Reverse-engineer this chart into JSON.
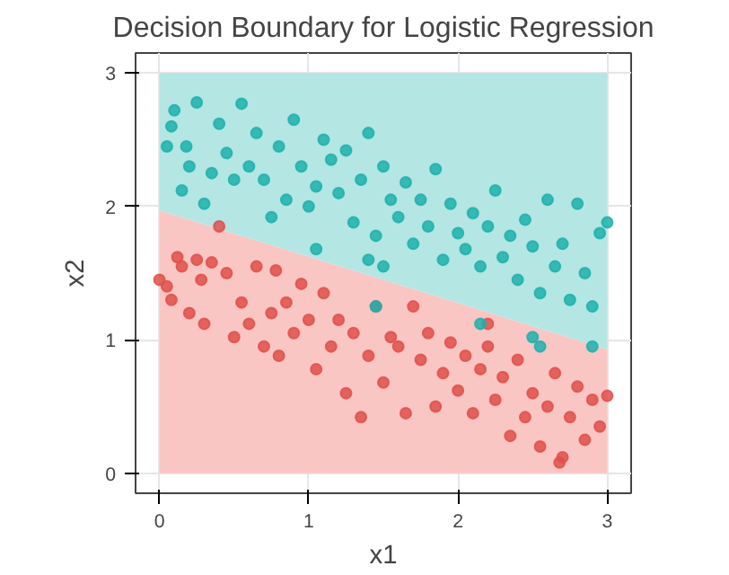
{
  "chart_data": {
    "type": "scatter",
    "title": "Decision Boundary for Logistic Regression",
    "xlabel": "x1",
    "ylabel": "x2",
    "xlim": [
      -0.16,
      3.16
    ],
    "ylim": [
      -0.15,
      3.15
    ],
    "xticks": [
      0,
      1,
      2,
      3
    ],
    "yticks": [
      0,
      1,
      2,
      3
    ],
    "grid": true,
    "stacked": true,
    "series": [
      {
        "type": "area",
        "color": "#f9c6c4",
        "x": [
          0,
          3
        ],
        "values": [
          1.97,
          0.93
        ]
      },
      {
        "type": "area",
        "color": "#b4e6e3",
        "x": [
          0,
          3
        ],
        "values": [
          1.03,
          2.07
        ]
      },
      {
        "color": "#e0504a",
        "marker": "circle",
        "x": [
          0.0,
          0.05,
          0.08,
          0.12,
          0.15,
          0.2,
          0.25,
          0.28,
          0.3,
          0.35,
          0.4,
          0.45,
          0.5,
          0.55,
          0.6,
          0.65,
          0.7,
          0.75,
          0.78,
          0.8,
          0.85,
          0.9,
          0.95,
          1.0,
          1.05,
          1.1,
          1.15,
          1.2,
          1.25,
          1.3,
          1.35,
          1.4,
          1.45,
          1.5,
          1.55,
          1.6,
          1.65,
          1.7,
          1.75,
          1.8,
          1.85,
          1.9,
          1.95,
          2.0,
          2.05,
          2.1,
          2.15,
          2.2,
          2.25,
          2.3,
          2.35,
          2.4,
          2.45,
          2.5,
          2.55,
          2.6,
          2.65,
          2.7,
          2.75,
          2.8,
          2.85,
          2.9,
          2.95,
          3.0,
          2.68,
          2.2
        ],
        "values": [
          1.45,
          1.4,
          1.3,
          1.62,
          1.55,
          1.2,
          1.6,
          1.45,
          1.12,
          1.58,
          1.85,
          1.5,
          1.02,
          1.28,
          1.12,
          1.55,
          0.95,
          1.2,
          1.52,
          0.88,
          1.28,
          1.05,
          1.42,
          1.15,
          0.78,
          1.35,
          0.95,
          1.15,
          0.6,
          1.05,
          0.42,
          0.88,
          1.25,
          0.68,
          1.02,
          0.95,
          0.45,
          1.25,
          0.85,
          1.05,
          0.5,
          0.75,
          0.98,
          0.62,
          0.88,
          0.45,
          0.78,
          0.95,
          0.55,
          0.72,
          0.28,
          0.85,
          0.42,
          0.6,
          0.2,
          0.5,
          0.75,
          0.12,
          0.42,
          0.65,
          0.25,
          0.55,
          0.35,
          0.58,
          0.08,
          1.12
        ]
      },
      {
        "color": "#1fb0ad",
        "marker": "circle",
        "x": [
          0.05,
          0.08,
          0.1,
          0.15,
          0.18,
          0.2,
          0.25,
          0.3,
          0.35,
          0.4,
          0.45,
          0.5,
          0.55,
          0.6,
          0.65,
          0.7,
          0.75,
          0.8,
          0.85,
          0.9,
          0.95,
          1.0,
          1.05,
          1.1,
          1.15,
          1.2,
          1.25,
          1.3,
          1.35,
          1.4,
          1.45,
          1.5,
          1.55,
          1.6,
          1.65,
          1.7,
          1.75,
          1.8,
          1.85,
          1.9,
          1.95,
          2.0,
          2.05,
          2.1,
          2.15,
          2.2,
          2.25,
          2.3,
          2.35,
          2.4,
          2.45,
          2.5,
          2.55,
          2.6,
          2.65,
          2.7,
          2.75,
          2.8,
          2.85,
          2.9,
          2.95,
          3.0,
          1.05,
          1.4,
          1.5,
          1.45,
          2.15,
          2.5,
          2.55,
          2.9
        ],
        "values": [
          2.45,
          2.6,
          2.72,
          2.12,
          2.45,
          2.3,
          2.78,
          2.02,
          2.25,
          2.62,
          2.4,
          2.2,
          2.77,
          2.3,
          2.55,
          2.2,
          1.92,
          2.45,
          2.05,
          2.65,
          2.3,
          2.0,
          2.15,
          2.5,
          2.35,
          2.1,
          2.42,
          1.88,
          2.2,
          2.55,
          1.78,
          2.3,
          2.05,
          1.92,
          2.18,
          1.72,
          2.05,
          1.85,
          2.28,
          1.6,
          2.02,
          1.8,
          1.68,
          1.95,
          1.55,
          1.85,
          2.12,
          1.62,
          1.78,
          1.45,
          1.9,
          1.7,
          1.35,
          2.05,
          1.55,
          1.72,
          1.3,
          2.02,
          1.5,
          1.25,
          1.8,
          1.88,
          1.68,
          1.6,
          1.55,
          1.25,
          1.12,
          1.02,
          0.95,
          0.95
        ]
      }
    ]
  }
}
